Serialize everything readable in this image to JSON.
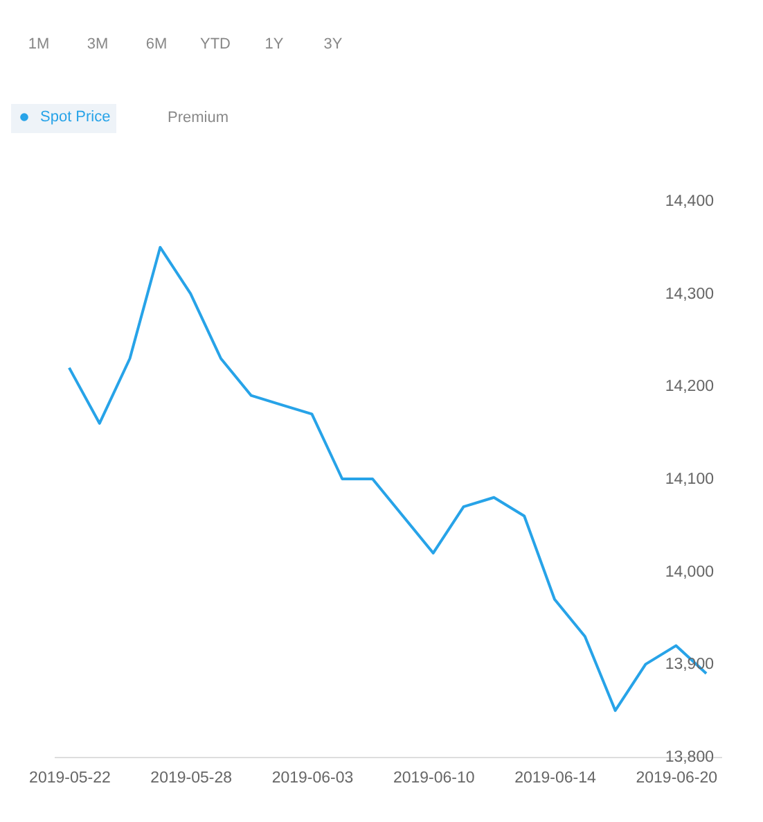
{
  "chart_data": {
    "type": "line",
    "categories": [
      "2019-05-22",
      null,
      null,
      null,
      "2019-05-28",
      null,
      null,
      null,
      "2019-06-03",
      null,
      null,
      null,
      "2019-06-10",
      null,
      null,
      null,
      "2019-06-14",
      null,
      null,
      null,
      "2019-06-20",
      null
    ],
    "series": [
      {
        "name": "Spot Price",
        "color": "#27a3e8",
        "values": [
          14220,
          14160,
          14230,
          14350,
          14300,
          14230,
          14190,
          14180,
          14170,
          14100,
          14100,
          14060,
          14020,
          14070,
          14080,
          14060,
          13970,
          13930,
          13850,
          13900,
          13920,
          13890
        ]
      }
    ],
    "ylim": [
      13800,
      14400
    ],
    "yticks": [
      {
        "value": 13800,
        "label": "13,800"
      },
      {
        "value": 13900,
        "label": "13,900"
      },
      {
        "value": 14000,
        "label": "14,000"
      },
      {
        "value": 14100,
        "label": "14,100"
      },
      {
        "value": 14200,
        "label": "14,200"
      },
      {
        "value": 14300,
        "label": "14,300"
      },
      {
        "value": 14400,
        "label": "14,400"
      }
    ],
    "legend": "top left",
    "annotations": [
      "1M",
      "3M",
      "6M",
      "YTD",
      "1Y",
      "3Y",
      "Premium"
    ]
  }
}
